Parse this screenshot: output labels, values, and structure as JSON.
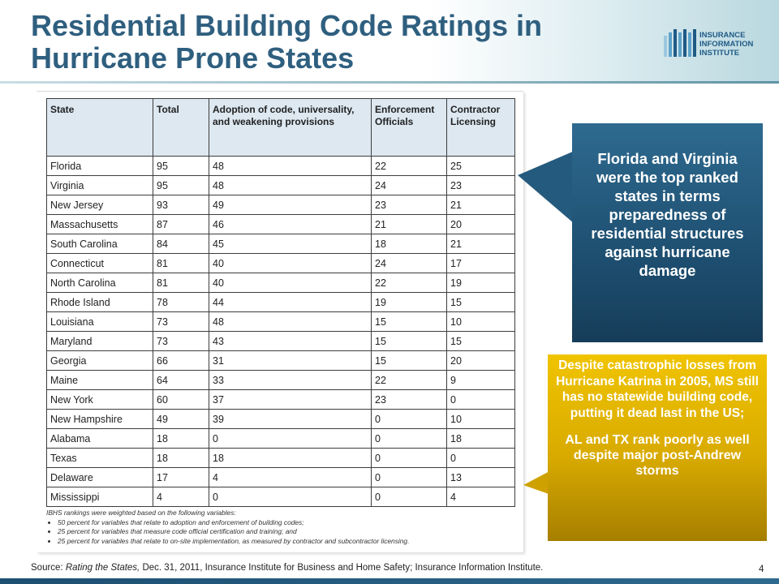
{
  "slide": {
    "title_line1": "Residential Building Code Ratings in",
    "title_line2": "Hurricane Prone States",
    "page_number": "4"
  },
  "logo": {
    "line1": "INSURANCE",
    "line2": "INFORMATION",
    "line3": "INSTITUTE",
    "icon": "iii-logo-icon",
    "color": "#1f5a86"
  },
  "table": {
    "headers": [
      "State",
      "Total",
      "Adoption of code, universality, and weakening provisions",
      "Enforcement Officials",
      "Contractor Licensing"
    ],
    "rows": [
      [
        "Florida",
        "95",
        "48",
        "22",
        "25"
      ],
      [
        "Virginia",
        "95",
        "48",
        "24",
        "23"
      ],
      [
        "New Jersey",
        "93",
        "49",
        "23",
        "21"
      ],
      [
        "Massachusetts",
        "87",
        "46",
        "21",
        "20"
      ],
      [
        "South Carolina",
        "84",
        "45",
        "18",
        "21"
      ],
      [
        "Connecticut",
        "81",
        "40",
        "24",
        "17"
      ],
      [
        "North Carolina",
        "81",
        "40",
        "22",
        "19"
      ],
      [
        "Rhode Island",
        "78",
        "44",
        "19",
        "15"
      ],
      [
        "Louisiana",
        "73",
        "48",
        "15",
        "10"
      ],
      [
        "Maryland",
        "73",
        "43",
        "15",
        "15"
      ],
      [
        "Georgia",
        "66",
        "31",
        "15",
        "20"
      ],
      [
        "Maine",
        "64",
        "33",
        "22",
        "9"
      ],
      [
        "New York",
        "60",
        "37",
        "23",
        "0"
      ],
      [
        "New Hampshire",
        "49",
        "39",
        "0",
        "10"
      ],
      [
        "Alabama",
        "18",
        "0",
        "0",
        "18"
      ],
      [
        "Texas",
        "18",
        "18",
        "0",
        "0"
      ],
      [
        "Delaware",
        "17",
        "4",
        "0",
        "13"
      ],
      [
        "Mississippi",
        "4",
        "0",
        "0",
        "4"
      ]
    ],
    "notes_intro": "IBHS rankings were weighted based on the following variables:",
    "notes": [
      "50 percent for variables that relate to adoption and enforcement of building codes;",
      "25 percent for variables that measure code official certification and training; and",
      "25 percent for variables that relate to on-site implementation, as measured by contractor and subcontractor licensing."
    ]
  },
  "callout_blue": {
    "text": "Florida and Virginia were the top ranked states in terms preparedness of residential structures against hurricane damage",
    "color": "#1e4f71"
  },
  "callout_gold": {
    "text1": "Despite catastrophic losses from Hurricane Katrina in 2005, MS still has no statewide building code, putting it dead last in the US;",
    "text2": "AL and TX rank poorly as well despite major post-Andrew storms",
    "color": "#d8aa00"
  },
  "source": {
    "prefix": "Source:  ",
    "italic": "Rating the States,",
    "rest": " Dec. 31, 2011, Insurance Institute for Business and Home Safety; Insurance Information Institute."
  }
}
